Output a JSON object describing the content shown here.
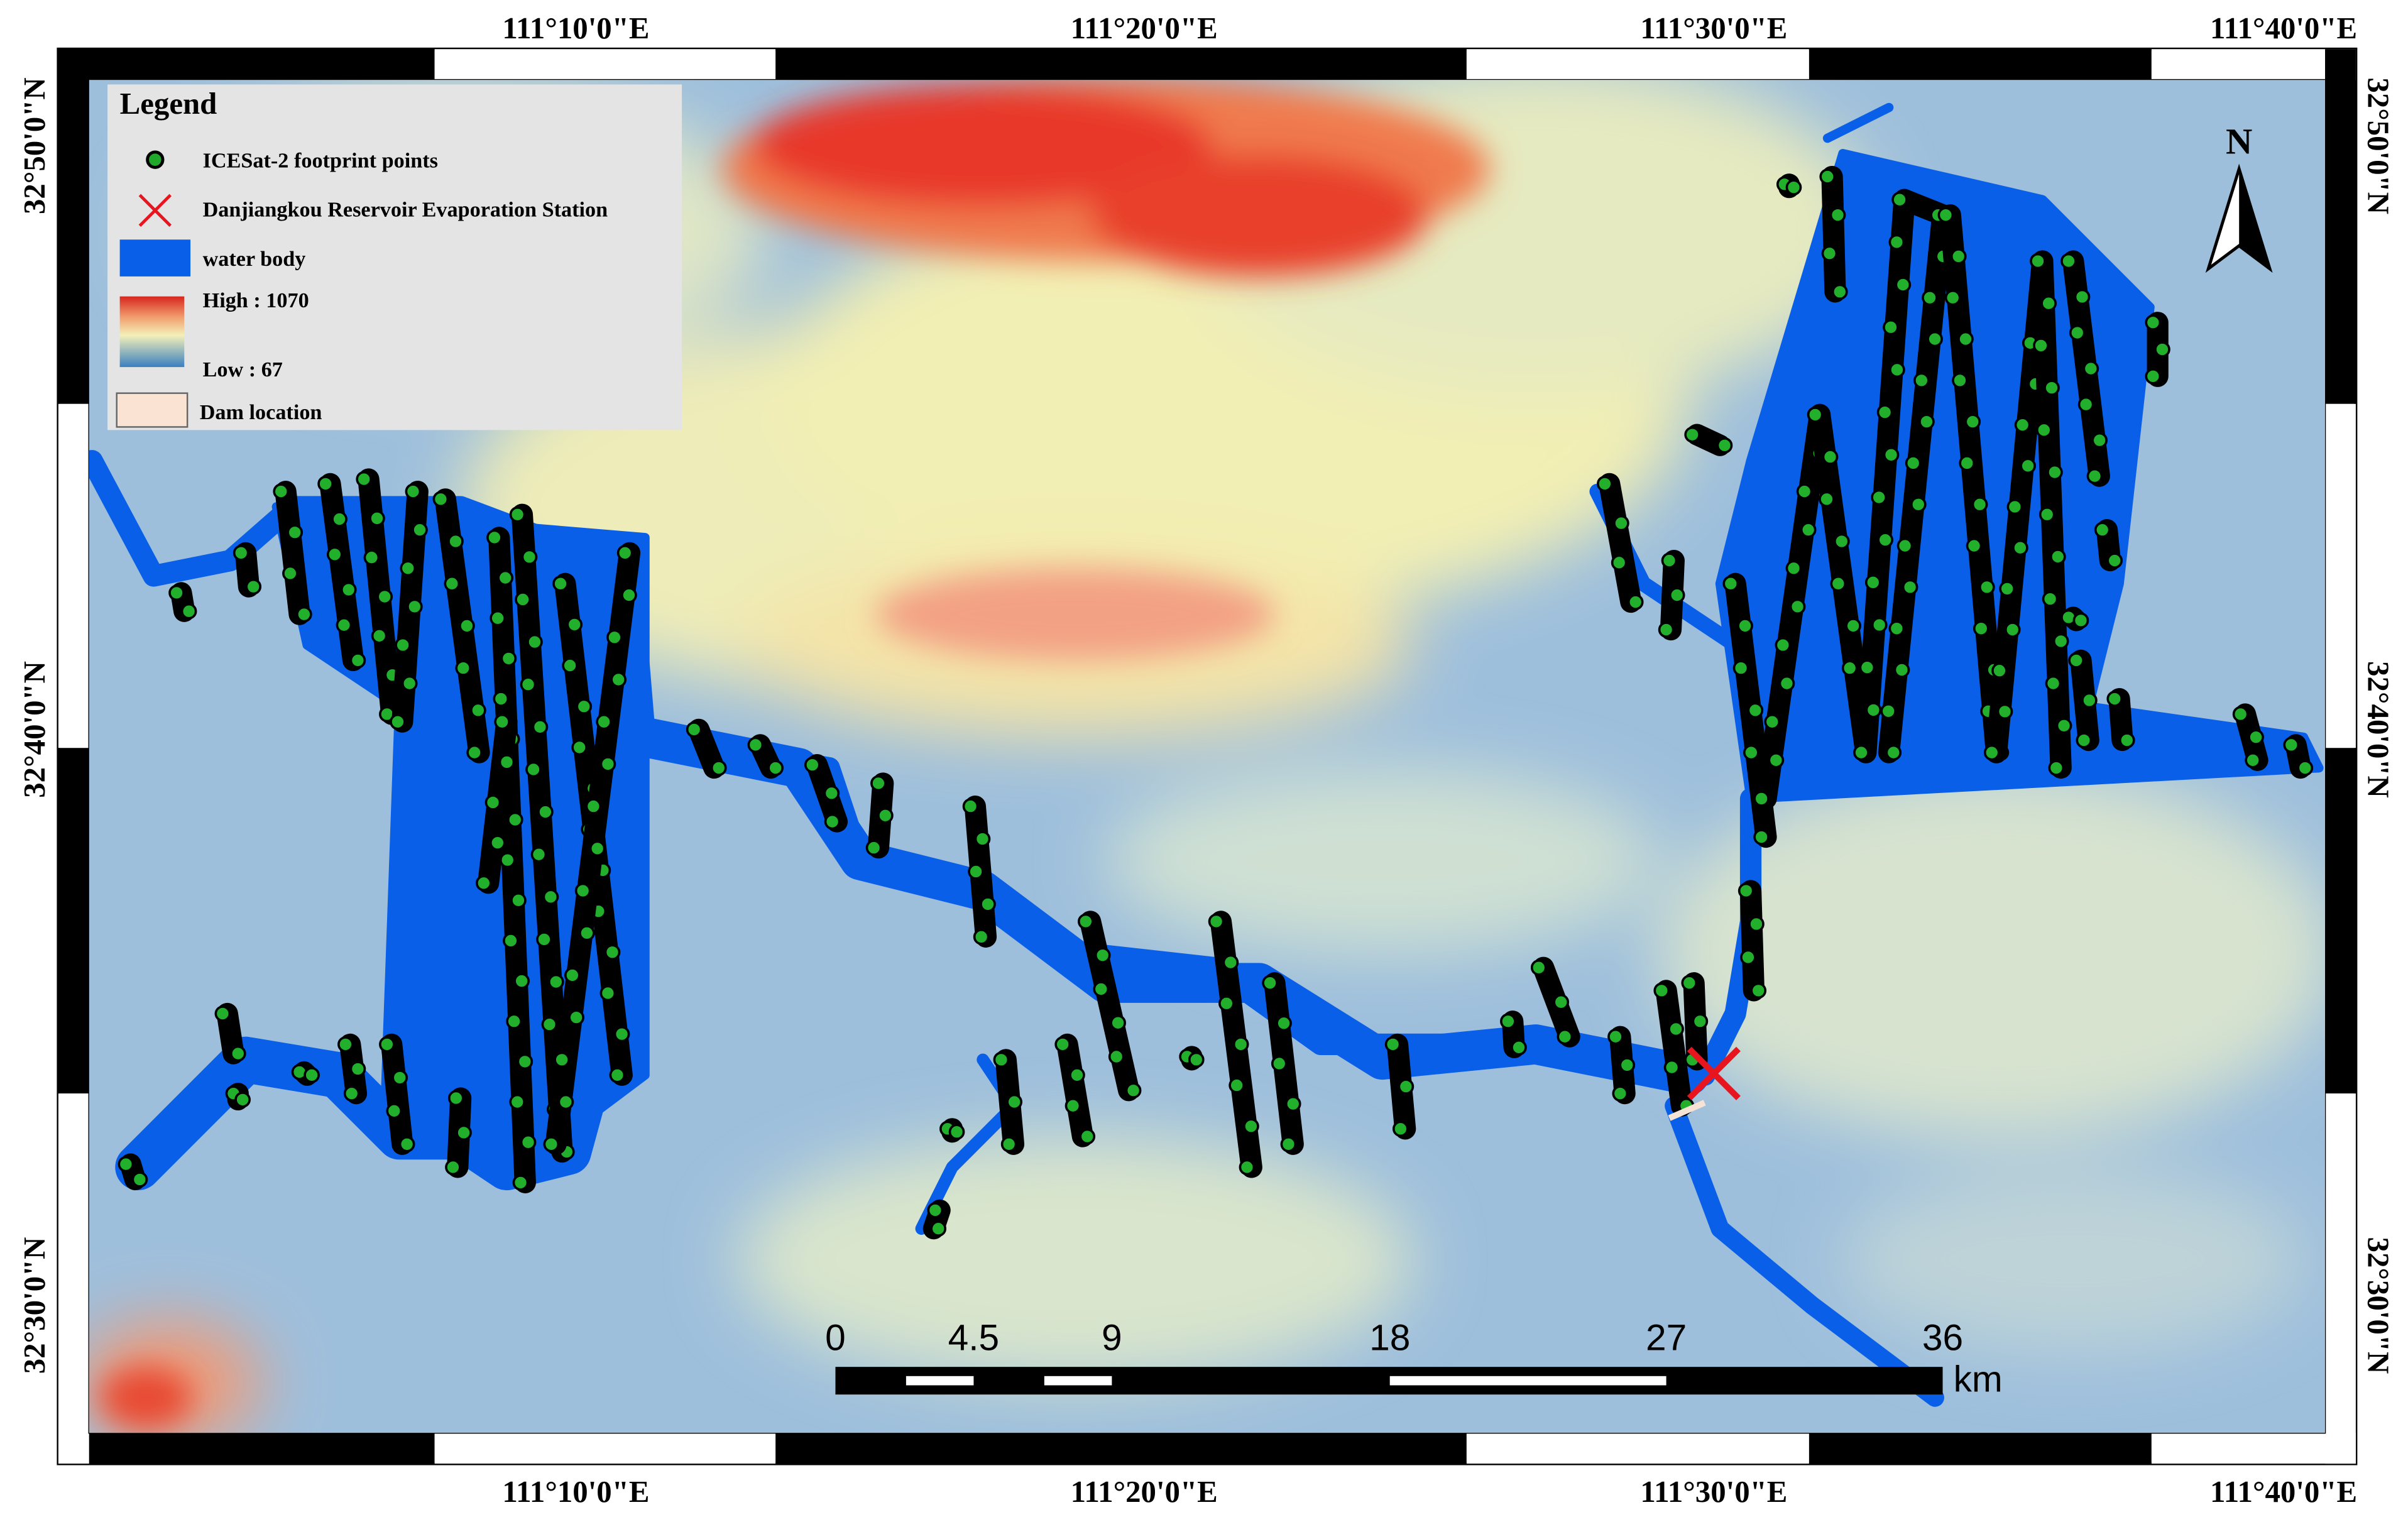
{
  "legend": {
    "title": "Legend",
    "footprint": "ICESat-2 footprint points",
    "station": "Danjiangkou Reservoir Evaporation Station",
    "water": "water body",
    "high": "High : 1070",
    "low": "Low : 67",
    "dam": "Dam location"
  },
  "longitude_labels": [
    "111°10'0\"E",
    "111°20'0\"E",
    "111°30'0\"E",
    "111°40'0\"E"
  ],
  "latitude_labels": [
    "32°50'0\"N",
    "32°40'0\"N",
    "32°30'0\"N"
  ],
  "scale_bar": {
    "labels": [
      "0",
      "4.5",
      "9",
      "18",
      "27",
      "36"
    ],
    "unit": "km"
  },
  "north": "N"
}
